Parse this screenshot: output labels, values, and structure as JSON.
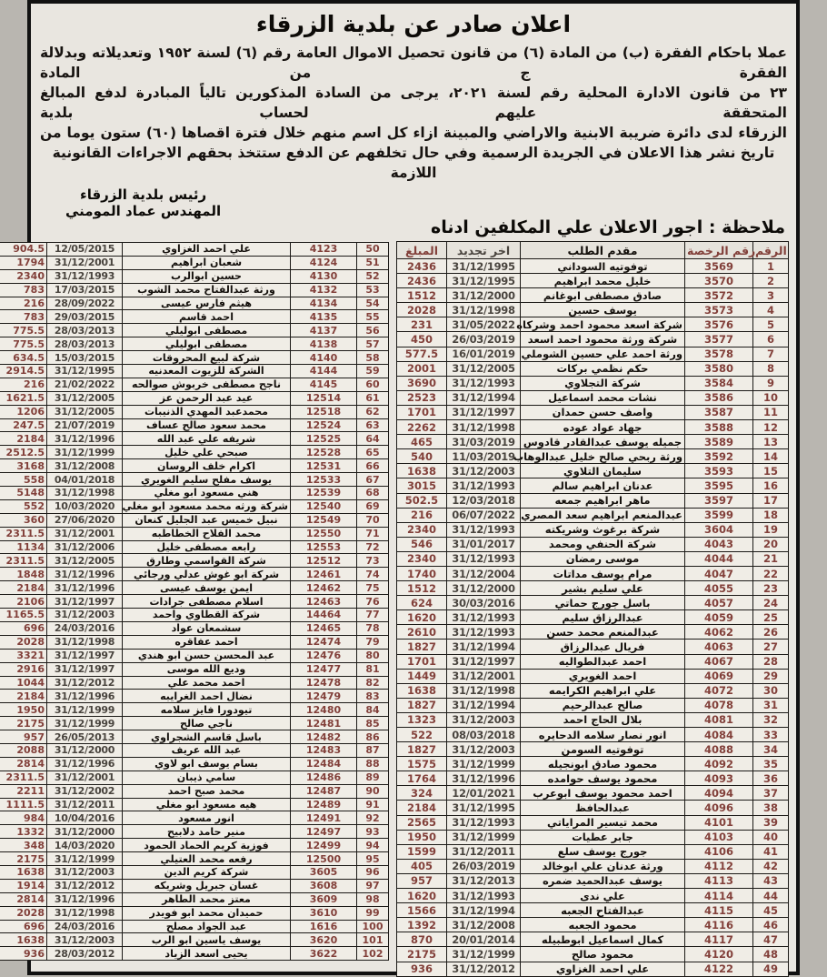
{
  "page": {
    "title": "اعلان صادر عن بلدية الزرقاء",
    "body_lines": [
      "عملا باحكام الفقرة (ب) من المادة (٦) من قانون تحصيل الاموال العامة رقم (٦) لسنة ١٩٥٢ وتعديلاته وبدلالة الفقرة ج من المادة",
      "٢٣ من قانون الادارة المحلية رقم لسنة ٢٠٢١، يرجى من السادة المذكورين تالياً المبادرة لدفع المبالغ المتحققة عليهم لحساب بلدية",
      "الزرقاء لدى دائرة ضريبة الابنية والاراضي والمبينة ازاء كل اسم منهم خلال فترة اقصاها (٦٠) ستون يوما من",
      "تاريخ نشر هذا الاعلان في الجريدة الرسمية وفي حال تخلفهم عن الدفع ستتخذ بحقهم الاجراءات القانونية اللازمة"
    ],
    "signature": {
      "line1": "رئيس بلدية الزرقاء",
      "line2": "المهندس عماد المومني"
    },
    "note": "ملاحظة : اجور الاعلان علي المكلفين ادناه"
  },
  "table": {
    "headers": {
      "num": "الرقم",
      "license": "رقم الرخصة",
      "name": "مقدم الطلب",
      "renewal": "اخر تجديد",
      "amount": "المبلغ"
    },
    "right_rows": [
      [
        1,
        "3569",
        "توفوتيه السوداني",
        "31/12/1995",
        "2436"
      ],
      [
        2,
        "3570",
        "خليل محمد ابراهيم",
        "31/12/1995",
        "2436"
      ],
      [
        3,
        "3572",
        "صادق مصطفى ابوغانم",
        "31/12/2000",
        "1512"
      ],
      [
        4,
        "3573",
        "يوسف حسين",
        "31/12/1998",
        "2028"
      ],
      [
        5,
        "3576",
        "شركة اسعد محمود احمد وشركاه",
        "31/05/2022",
        "231"
      ],
      [
        6,
        "3577",
        "شركة ورثة محمود احمد اسعد",
        "26/03/2019",
        "450"
      ],
      [
        7,
        "3578",
        "ورثة احمد علي حسين الشوملي",
        "16/01/2019",
        "577.5"
      ],
      [
        8,
        "3580",
        "حكم نظمي بركات",
        "31/12/2005",
        "2001"
      ],
      [
        9,
        "3584",
        "شركة التجلاوي",
        "31/12/1993",
        "3690"
      ],
      [
        10,
        "3586",
        "نشات محمد اسماعيل",
        "31/12/1994",
        "2523"
      ],
      [
        11,
        "3587",
        "واصف حسن حمدان",
        "31/12/1997",
        "1701"
      ],
      [
        12,
        "3588",
        "جهاد عواد عوده",
        "31/12/1998",
        "2262"
      ],
      [
        13,
        "3589",
        "جميله يوسف عبدالقادر قادوس",
        "31/03/2019",
        "465"
      ],
      [
        14,
        "3592",
        "ورثة ربحي صالح خليل عبدالوهاب",
        "11/03/2019",
        "540"
      ],
      [
        15,
        "3593",
        "سليمان التلاوي",
        "31/12/2003",
        "1638"
      ],
      [
        16,
        "3595",
        "عدنان ابراهيم سالم",
        "31/12/1993",
        "3015"
      ],
      [
        17,
        "3597",
        "ماهر ابراهيم جمعه",
        "12/03/2018",
        "502.5"
      ],
      [
        18,
        "3599",
        "عبدالمنعم ابراهيم سعد المصري",
        "06/07/2022",
        "216"
      ],
      [
        19,
        "3604",
        "شركة برغوث وشريكته",
        "31/12/1993",
        "2340"
      ],
      [
        20,
        "4043",
        "شركة الحنفي ومحمد",
        "31/01/2017",
        "546"
      ],
      [
        21,
        "4044",
        "موسى رمضان",
        "31/12/1993",
        "2340"
      ],
      [
        22,
        "4047",
        "مرام يوسف مداتات",
        "31/12/2004",
        "1740"
      ],
      [
        23,
        "4055",
        "علي سليم بشير",
        "31/12/2000",
        "1512"
      ],
      [
        24,
        "4057",
        "باسل جورج حماتي",
        "30/03/2016",
        "624"
      ],
      [
        25,
        "4059",
        "عبدالرزاق سليم",
        "31/12/1993",
        "1620"
      ],
      [
        26,
        "4062",
        "عبدالمنعم محمد حسن",
        "31/12/1993",
        "2610"
      ],
      [
        27,
        "4063",
        "فريال عبدالرزاق",
        "31/12/1994",
        "1827"
      ],
      [
        28,
        "4067",
        "احمد عبدالطواليه",
        "31/12/1997",
        "1701"
      ],
      [
        29,
        "4069",
        "احمد الغويري",
        "31/12/2001",
        "1449"
      ],
      [
        30,
        "4072",
        "علي ابراهيم الكرايمه",
        "31/12/1998",
        "1638"
      ],
      [
        31,
        "4078",
        "صالح عبدالرحيم",
        "31/12/1994",
        "1827"
      ],
      [
        32,
        "4081",
        "بلال الحاج احمد",
        "31/12/2003",
        "1323"
      ],
      [
        33,
        "4084",
        "انور نصار سلامه الدحايره",
        "08/03/2018",
        "522"
      ],
      [
        34,
        "4088",
        "توفوتيه السومن",
        "31/12/2003",
        "1827"
      ],
      [
        35,
        "4092",
        "محمود صادق ابونجيله",
        "31/12/1999",
        "1575"
      ],
      [
        36,
        "4093",
        "محمود يوسف حوامده",
        "31/12/1996",
        "1764"
      ],
      [
        37,
        "4094",
        "احمد محمود يوسف ابوعرب",
        "12/01/2021",
        "324"
      ],
      [
        38,
        "4096",
        "عبدالحافظ",
        "31/12/1995",
        "2184"
      ],
      [
        39,
        "4101",
        "محمد تيسير المراياتي",
        "31/12/1993",
        "2565"
      ],
      [
        40,
        "4103",
        "جابر عطيات",
        "31/12/1999",
        "1950"
      ],
      [
        41,
        "4106",
        "جورج يوسف سلع",
        "31/12/2011",
        "1599"
      ],
      [
        42,
        "4112",
        "ورثة عدنان علي ابوخالد",
        "26/03/2019",
        "405"
      ],
      [
        43,
        "4113",
        "يوسف عبدالحميد ضمره",
        "31/12/2013",
        "957"
      ],
      [
        44,
        "4114",
        "علي ندى",
        "31/12/1993",
        "1620"
      ],
      [
        45,
        "4115",
        "عبدالفتاح الجعبه",
        "31/12/1994",
        "1566"
      ],
      [
        46,
        "4116",
        "محمود الجعبه",
        "31/12/2008",
        "1392"
      ],
      [
        47,
        "4117",
        "كمال اسماعيل ابوطبيله",
        "20/01/2014",
        "870"
      ],
      [
        48,
        "4120",
        "محمود صالح",
        "31/12/1999",
        "2175"
      ],
      [
        49,
        "4122",
        "علي احمد الغزاوي",
        "31/12/2012",
        "936"
      ]
    ],
    "left_rows": [
      [
        50,
        "4123",
        "علي احمد الغزاوي",
        "12/05/2015",
        "904.5"
      ],
      [
        51,
        "4124",
        "شعبان ابراهيم",
        "31/12/2001",
        "1794"
      ],
      [
        52,
        "4130",
        "حسين ابوالرب",
        "31/12/1993",
        "2340"
      ],
      [
        53,
        "4132",
        "ورثة عبدالفتاح محمد الشوب",
        "17/03/2015",
        "783"
      ],
      [
        54,
        "4134",
        "هيثم فارس عيسى",
        "28/09/2022",
        "216"
      ],
      [
        55,
        "4135",
        "احمد قاسم",
        "29/03/2015",
        "783"
      ],
      [
        56,
        "4137",
        "مصطفى ابوليلي",
        "28/03/2013",
        "775.5"
      ],
      [
        57,
        "4138",
        "مصطفى ابوليلي",
        "28/03/2013",
        "775.5"
      ],
      [
        58,
        "4140",
        "شركة لبيع المحروقات",
        "15/03/2015",
        "634.5"
      ],
      [
        59,
        "4144",
        "الشركة للزيوت المعدنيه",
        "31/12/1995",
        "2914.5"
      ],
      [
        60,
        "4145",
        "ناجح مصطفى خربوش صوالحه",
        "21/02/2022",
        "216"
      ],
      [
        61,
        "12514",
        "عيد عبد الرحمن عز",
        "31/12/2005",
        "1621.5"
      ],
      [
        62,
        "12518",
        "محمدعبد المهدي الذنيبات",
        "31/12/2005",
        "1206"
      ],
      [
        63,
        "12524",
        "محمد سعود صالح عساف",
        "21/07/2019",
        "247.5"
      ],
      [
        64,
        "12525",
        "شريفه علي عبد الله",
        "31/12/1996",
        "2184"
      ],
      [
        65,
        "12528",
        "صبحي علي خليل",
        "31/12/1999",
        "2512.5"
      ],
      [
        66,
        "12531",
        "اكرام خلف الروسان",
        "31/12/2008",
        "3168"
      ],
      [
        67,
        "12533",
        "يوسف مفلح سليم الغويري",
        "04/01/2018",
        "558"
      ],
      [
        68,
        "12539",
        "هني مسعود ابو مغلي",
        "31/12/1998",
        "5148"
      ],
      [
        69,
        "12540",
        "شركة ورثه محمد مسعود ابو مغلي",
        "10/03/2020",
        "552"
      ],
      [
        70,
        "12549",
        "نبيل خميس عبد الجليل كنعان",
        "27/06/2020",
        "360"
      ],
      [
        71,
        "12550",
        "محمد الفلاح الخطاطبه",
        "31/12/2001",
        "2311.5"
      ],
      [
        72,
        "12553",
        "رابعه مصطفى خليل",
        "31/12/2006",
        "1134"
      ],
      [
        73,
        "12512",
        "شركة القواسمي وطارق",
        "31/12/2005",
        "2311.5"
      ],
      [
        74,
        "12461",
        "شركة ابو غوش عدلي ورجائي",
        "31/12/1996",
        "1848"
      ],
      [
        75,
        "12462",
        "ايمن يوسف عيسى",
        "31/12/1996",
        "2184"
      ],
      [
        76,
        "12463",
        "اسلام مصطفى جرادات",
        "31/12/1997",
        "2106"
      ],
      [
        77,
        "14464",
        "شركة القطاوي واحمد",
        "31/12/2003",
        "1165.5"
      ],
      [
        78,
        "12465",
        "سشمعان عواد",
        "24/03/2016",
        "696"
      ],
      [
        79,
        "12474",
        "احمد عفاقره",
        "31/12/1998",
        "2028"
      ],
      [
        80,
        "12476",
        "عبد المحسن حسن ابو هندي",
        "31/12/1997",
        "3321"
      ],
      [
        81,
        "12477",
        "وديع الله موسى",
        "31/12/1997",
        "2916"
      ],
      [
        82,
        "12478",
        "احمد محمد علي",
        "31/12/2012",
        "1044"
      ],
      [
        83,
        "12479",
        "نضال احمد الغرايبه",
        "31/12/1996",
        "2184"
      ],
      [
        84,
        "12480",
        "تيودورا فايز سلامه",
        "31/12/1999",
        "1950"
      ],
      [
        85,
        "12481",
        "ناجي صالح",
        "31/12/1999",
        "2175"
      ],
      [
        86,
        "12482",
        "باسل قاسم الشجراوي",
        "26/05/2013",
        "957"
      ],
      [
        87,
        "12483",
        "عبد الله عريف",
        "31/12/2000",
        "2088"
      ],
      [
        88,
        "12484",
        "بسام يوسف ابو لاوي",
        "31/12/1996",
        "2814"
      ],
      [
        89,
        "12486",
        "سامي ذيبان",
        "31/12/2001",
        "2311.5"
      ],
      [
        90,
        "12487",
        "محمد صبح احمد",
        "31/12/2002",
        "2211"
      ],
      [
        91,
        "12489",
        "هيه مسعود ابو مغلي",
        "31/12/2011",
        "1111.5"
      ],
      [
        92,
        "12491",
        "انور مسعود",
        "10/04/2016",
        "984"
      ],
      [
        93,
        "12497",
        "منير حامد دلابيح",
        "31/12/2000",
        "1332"
      ],
      [
        94,
        "12499",
        "فوزية كريم الحماد الحمود",
        "14/03/2020",
        "348"
      ],
      [
        95,
        "12500",
        "رفعه محمد العتيلي",
        "31/12/1999",
        "2175"
      ],
      [
        96,
        "3605",
        "شركة كريم الدين",
        "31/12/2003",
        "1638"
      ],
      [
        97,
        "3608",
        "غسان جبريل وشريكه",
        "31/12/2012",
        "1914"
      ],
      [
        98,
        "3609",
        "معتز محمد الطاهر",
        "31/12/1996",
        "2814"
      ],
      [
        99,
        "3610",
        "حميدان محمد ابو فويدر",
        "31/12/1998",
        "2028"
      ],
      [
        100,
        "1616",
        "عبد الجواد مصلح",
        "24/03/2016",
        "696"
      ],
      [
        101,
        "3620",
        "يوسف ياسين ابو الرب",
        "31/12/2003",
        "1638"
      ],
      [
        102,
        "3622",
        "يحيى اسعد الزياد",
        "28/03/2012",
        "936"
      ]
    ]
  },
  "colors": {
    "page_background": "#e9e6e0",
    "cell_background": "#f0ede6",
    "border": "#1c1a17",
    "number_text": "#82403a",
    "date_text": "#4a453f",
    "name_text": "#14100c"
  }
}
